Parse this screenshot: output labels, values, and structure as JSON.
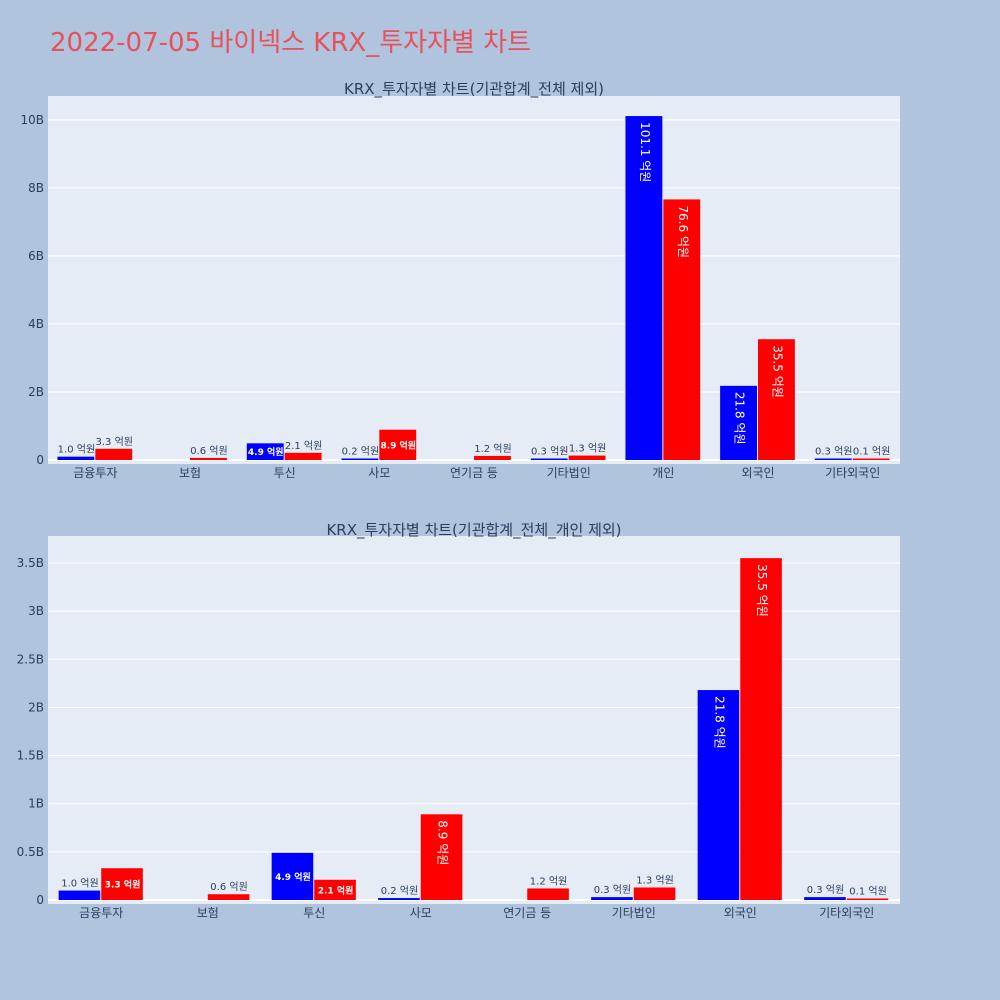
{
  "page": {
    "title": "2022-07-05 바이넥스 KRX_투자자별 차트",
    "background": "#b0c4de",
    "title_color": "#e8505b",
    "plot_background": "#e5ecf6",
    "buy_color": "#0000ff",
    "sell_color": "#ff0000"
  },
  "chart_data": [
    {
      "type": "bar",
      "title": "KRX_투자자별 차트(기관합계_전체 제외)",
      "categories": [
        "금융투자",
        "보험",
        "투신",
        "사모",
        "연기금 등",
        "기타법인",
        "개인",
        "외국인",
        "기타외국인"
      ],
      "series": [
        {
          "color": "#0000ff",
          "values": [
            98000000,
            0,
            490000000,
            20000000,
            0,
            30000000,
            10110000000,
            2180000000,
            30000000
          ],
          "labels": [
            "1.0 억원",
            "",
            "4.9 억원",
            "0.2 억원",
            "",
            "0.3 억원",
            "101.1 억원",
            "21.8 억원",
            "0.3 억원"
          ]
        },
        {
          "color": "#ff0000",
          "values": [
            330000000,
            60000000,
            210000000,
            890000000,
            120000000,
            130000000,
            7660000000,
            3550000000,
            10000000
          ],
          "labels": [
            "3.3 억원",
            "0.6 억원",
            "2.1 억원",
            "8.9 억원",
            "1.2 억원",
            "1.3 억원",
            "76.6 억원",
            "35.5 억원",
            "0.1 억원"
          ]
        }
      ],
      "ylim": [
        0,
        10700000000
      ],
      "yticks": [
        0,
        2000000000,
        4000000000,
        6000000000,
        8000000000,
        10000000000
      ],
      "ytick_labels": [
        "0",
        "2B",
        "4B",
        "6B",
        "8B",
        "10B"
      ],
      "grid": true
    },
    {
      "type": "bar",
      "title": "KRX_투자자별 차트(기관합계_전체_개인 제외)",
      "categories": [
        "금융투자",
        "보험",
        "투신",
        "사모",
        "연기금 등",
        "기타법인",
        "외국인",
        "기타외국인"
      ],
      "series": [
        {
          "color": "#0000ff",
          "values": [
            98000000,
            0,
            490000000,
            20000000,
            0,
            30000000,
            2180000000,
            30000000
          ],
          "labels": [
            "1.0 억원",
            "",
            "4.9 억원",
            "0.2 억원",
            "",
            "0.3 억원",
            "21.8 억원",
            "0.3 억원"
          ]
        },
        {
          "color": "#ff0000",
          "values": [
            330000000,
            60000000,
            210000000,
            890000000,
            120000000,
            130000000,
            3550000000,
            10000000
          ],
          "labels": [
            "3.3 억원",
            "0.6 억원",
            "2.1 억원",
            "8.9 억원",
            "1.2 억원",
            "1.3 억원",
            "35.5 억원",
            "0.1 억원"
          ]
        }
      ],
      "ylim": [
        0,
        3780000000
      ],
      "yticks": [
        0,
        500000000,
        1000000000,
        1500000000,
        2000000000,
        2500000000,
        3000000000,
        3500000000
      ],
      "ytick_labels": [
        "0",
        "0.5B",
        "1B",
        "1.5B",
        "2B",
        "2.5B",
        "3B",
        "3.5B"
      ],
      "grid": true
    }
  ]
}
